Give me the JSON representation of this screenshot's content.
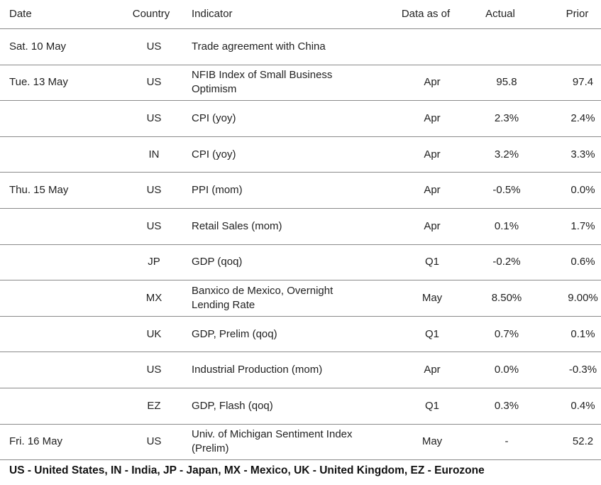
{
  "headers": {
    "date": "Date",
    "country": "Country",
    "indicator": "Indicator",
    "data_as_of": "Data as of",
    "actual": "Actual",
    "prior": "Prior"
  },
  "rows": [
    {
      "date": "Sat. 10 May",
      "country": "US",
      "indicator": "Trade agreement with China",
      "as_of": "",
      "actual": "",
      "prior": ""
    },
    {
      "date": "Tue. 13 May",
      "country": "US",
      "indicator": "NFIB Index of Small Business Optimism",
      "as_of": "Apr",
      "actual": "95.8",
      "prior": "97.4"
    },
    {
      "date": "",
      "country": "US",
      "indicator": "CPI (yoy)",
      "as_of": "Apr",
      "actual": "2.3%",
      "prior": "2.4%"
    },
    {
      "date": "",
      "country": "IN",
      "indicator": "CPI (yoy)",
      "as_of": "Apr",
      "actual": "3.2%",
      "prior": "3.3%"
    },
    {
      "date": "Thu. 15 May",
      "country": "US",
      "indicator": "PPI (mom)",
      "as_of": "Apr",
      "actual": "-0.5%",
      "prior": "0.0%"
    },
    {
      "date": "",
      "country": "US",
      "indicator": "Retail Sales (mom)",
      "as_of": "Apr",
      "actual": "0.1%",
      "prior": "1.7%"
    },
    {
      "date": "",
      "country": "JP",
      "indicator": "GDP (qoq)",
      "as_of": "Q1",
      "actual": "-0.2%",
      "prior": "0.6%"
    },
    {
      "date": "",
      "country": "MX",
      "indicator": "Banxico de Mexico, Overnight Lending Rate",
      "as_of": "May",
      "actual": "8.50%",
      "prior": "9.00%"
    },
    {
      "date": "",
      "country": "UK",
      "indicator": "GDP, Prelim (qoq)",
      "as_of": "Q1",
      "actual": "0.7%",
      "prior": "0.1%"
    },
    {
      "date": "",
      "country": "US",
      "indicator": "Industrial Production (mom)",
      "as_of": "Apr",
      "actual": "0.0%",
      "prior": "-0.3%"
    },
    {
      "date": "",
      "country": "EZ",
      "indicator": "GDP, Flash (qoq)",
      "as_of": "Q1",
      "actual": "0.3%",
      "prior": "0.4%"
    },
    {
      "date": "Fri. 16 May",
      "country": "US",
      "indicator": "Univ. of Michigan Sentiment Index (Prelim)",
      "as_of": "May",
      "actual": "-",
      "prior": "52.2"
    }
  ],
  "footer": "US - United States, IN - India, JP - Japan, MX - Mexico, UK - United Kingdom, EZ - Eurozone"
}
